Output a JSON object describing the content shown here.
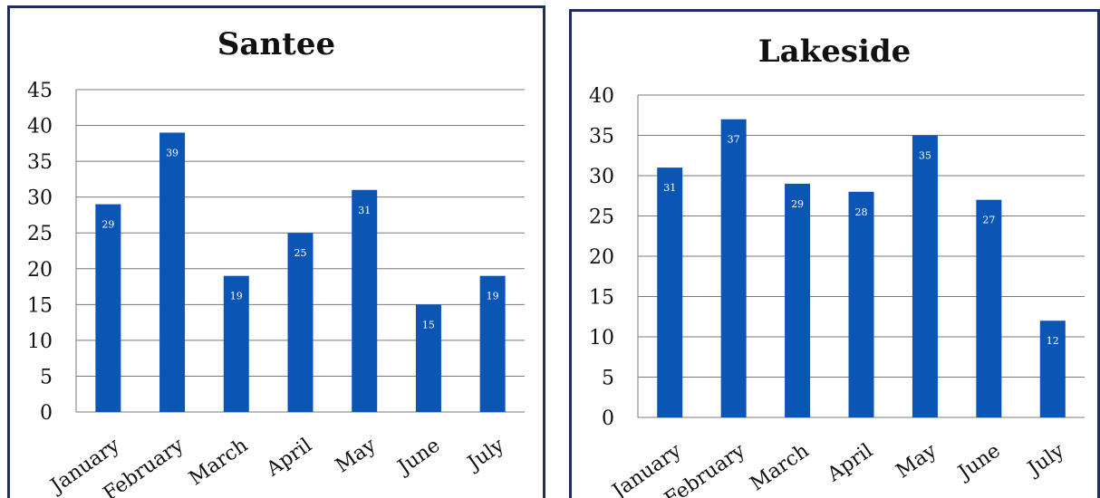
{
  "chart_data": [
    {
      "type": "bar",
      "title": "Santee",
      "categories": [
        "January",
        "February",
        "March",
        "April",
        "May",
        "June",
        "July"
      ],
      "values": [
        29,
        39,
        19,
        25,
        31,
        15,
        19
      ],
      "ylim": [
        0,
        45
      ],
      "yticks": [
        0,
        5,
        10,
        15,
        20,
        25,
        30,
        35,
        40,
        45
      ],
      "grid": true,
      "bar_color": "#0b56b5"
    },
    {
      "type": "bar",
      "title": "Lakeside",
      "categories": [
        "January",
        "February",
        "March",
        "April",
        "May",
        "June",
        "July"
      ],
      "values": [
        31,
        37,
        29,
        28,
        35,
        27,
        12
      ],
      "ylim": [
        0,
        40
      ],
      "yticks": [
        0,
        5,
        10,
        15,
        20,
        25,
        30,
        35,
        40
      ],
      "grid": true,
      "bar_color": "#0b56b5"
    }
  ]
}
